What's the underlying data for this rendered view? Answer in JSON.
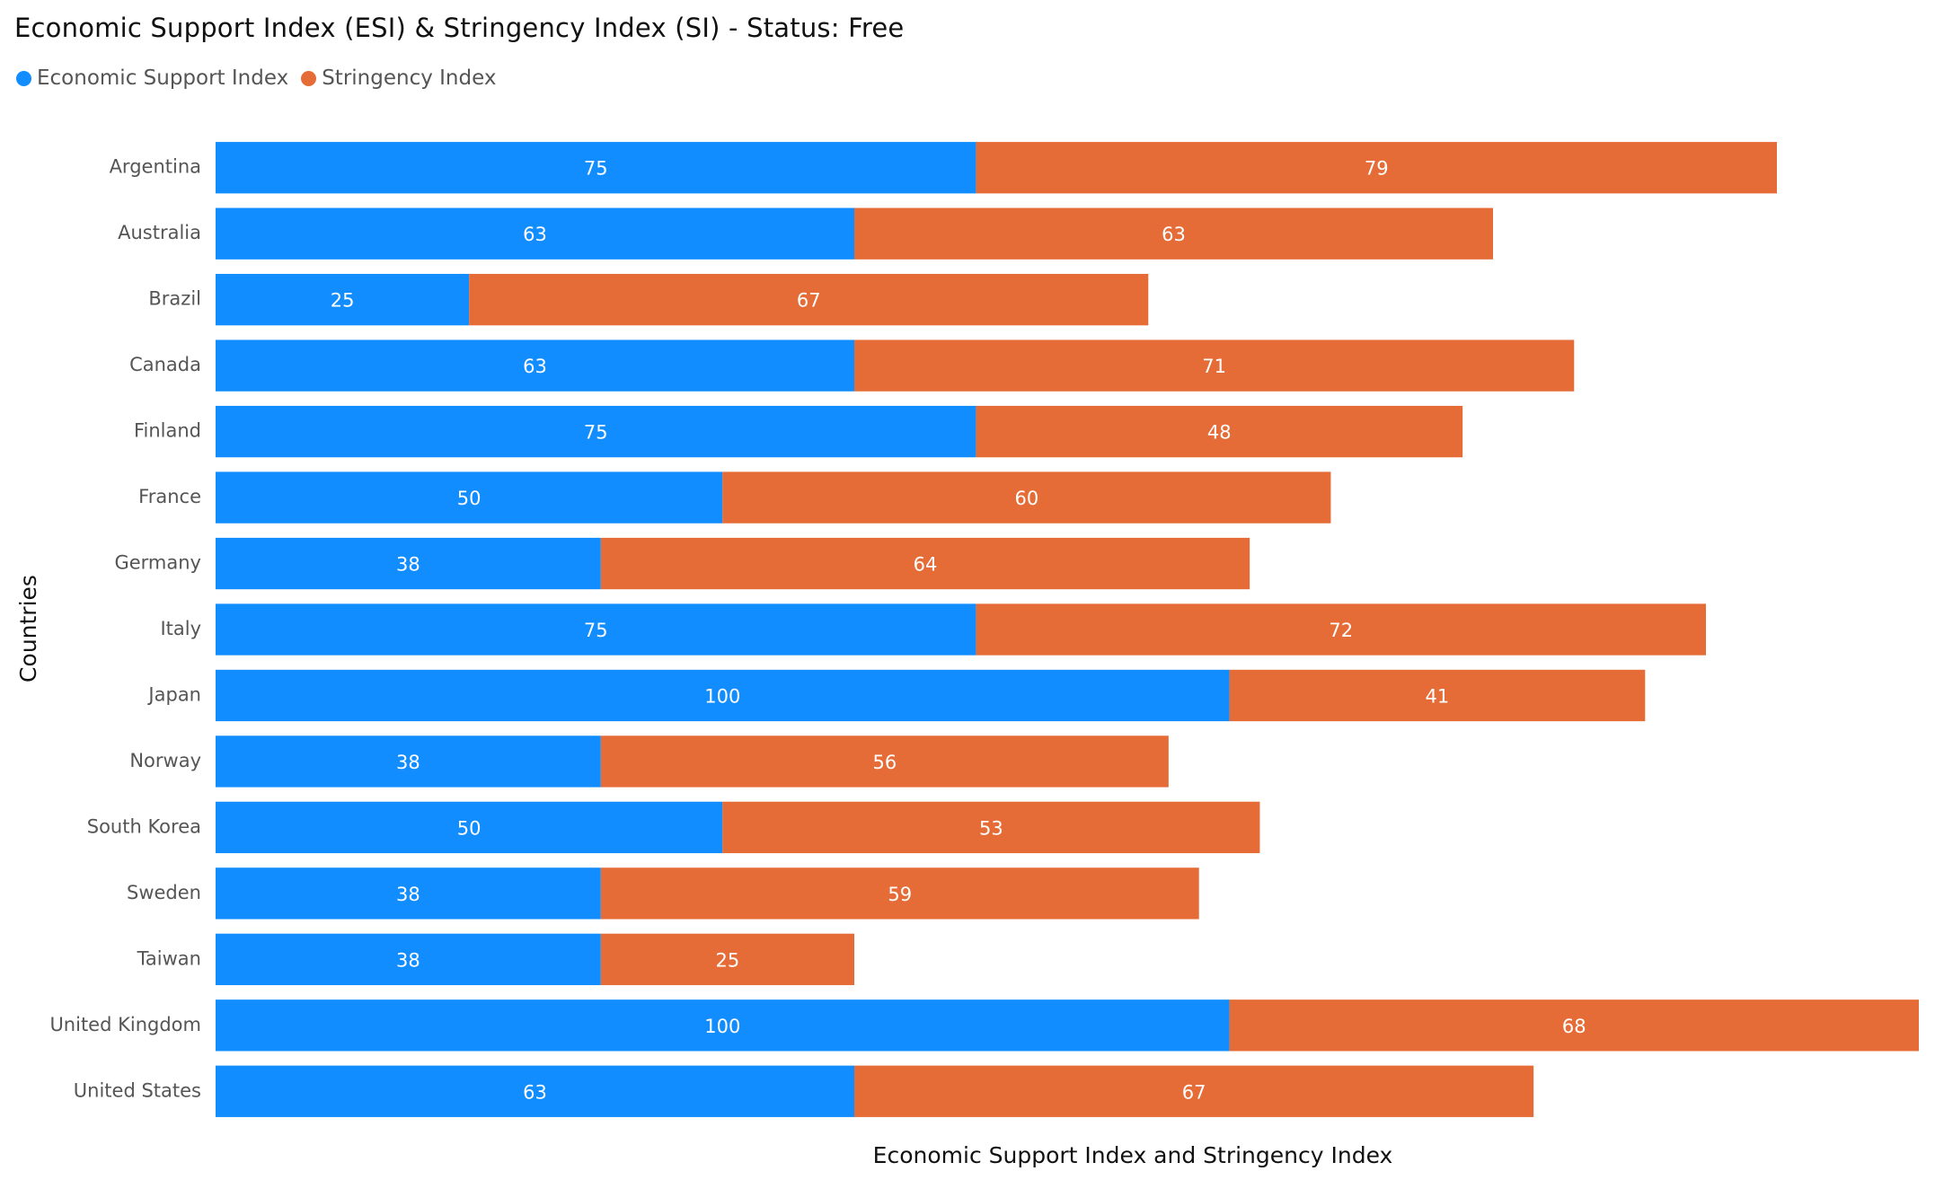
{
  "chart_data": {
    "type": "bar",
    "orientation": "horizontal",
    "stacked": true,
    "title": "Economic Support Index (ESI) & Stringency Index (SI) - Status: Free",
    "xlabel": "Economic Support Index and Stringency Index",
    "ylabel": "Countries",
    "categories": [
      "Argentina",
      "Australia",
      "Brazil",
      "Canada",
      "Finland",
      "France",
      "Germany",
      "Italy",
      "Japan",
      "Norway",
      "South Korea",
      "Sweden",
      "Taiwan",
      "United Kingdom",
      "United States"
    ],
    "series": [
      {
        "name": "Economic Support Index",
        "color": "#118DFF",
        "values": [
          75,
          63,
          25,
          63,
          75,
          50,
          38,
          75,
          100,
          38,
          50,
          38,
          38,
          100,
          63
        ]
      },
      {
        "name": "Stringency Index",
        "color": "#E66C37",
        "values": [
          79,
          63,
          67,
          71,
          48,
          60,
          64,
          72,
          41,
          56,
          53,
          59,
          25,
          68,
          67
        ]
      }
    ],
    "xlim": [
      0,
      168
    ],
    "grid": false,
    "legend_position": "top-left",
    "data_labels": true
  }
}
